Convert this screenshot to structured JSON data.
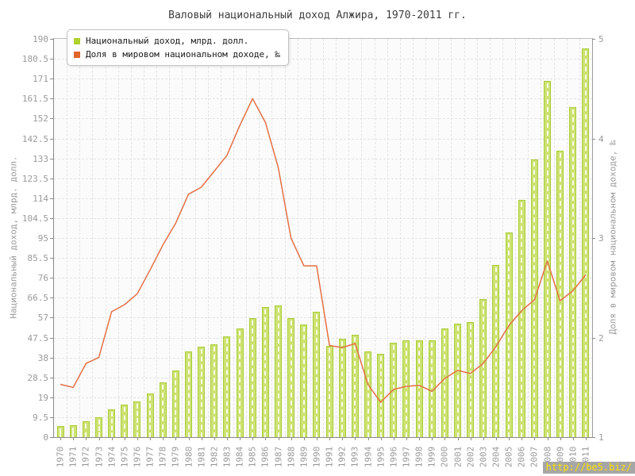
{
  "title": "Валовый национальный доход Алжира, 1970-2011 гг.",
  "watermark": {
    "text": "http://be5.biz/",
    "bg_color": "#a6a6a6",
    "text_color": "#ffe200"
  },
  "legend": {
    "items": [
      {
        "label": "Национальный доход, млрд. долл.",
        "color": "#afd12c"
      },
      {
        "label": "Доля в мировом национальном доходе, ‰",
        "color": "#e0662a"
      }
    ]
  },
  "chart_data": {
    "type": "bar",
    "title": "Валовый национальный доход Алжира, 1970-2011 гг.",
    "categories": [
      "1970",
      "1971",
      "1972",
      "1973",
      "1974",
      "1975",
      "1976",
      "1977",
      "1978",
      "1979",
      "1980",
      "1981",
      "1982",
      "1983",
      "1984",
      "1985",
      "1986",
      "1987",
      "1988",
      "1989",
      "1990",
      "1991",
      "1992",
      "1993",
      "1994",
      "1995",
      "1996",
      "1997",
      "1998",
      "1999",
      "2000",
      "2001",
      "2002",
      "2003",
      "2004",
      "2005",
      "2006",
      "2007",
      "2008",
      "2009",
      "2010",
      "2011"
    ],
    "series": [
      {
        "name": "Национальный доход, млрд. долл.",
        "type": "bar",
        "axis": "left",
        "color": "#cde272",
        "border_color": "#a9cd37",
        "values": [
          5.3,
          5.8,
          7.6,
          9.5,
          13.1,
          15.4,
          17,
          20.8,
          26.2,
          31.7,
          41,
          43.3,
          44.2,
          48.2,
          52,
          56.8,
          62.1,
          62.8,
          56.8,
          53.9,
          59.7,
          43.5,
          47.1,
          48.9,
          40.8,
          39.7,
          45,
          46,
          46,
          46,
          51.7,
          54.2,
          54.9,
          66,
          82,
          97.8,
          113,
          132.5,
          170,
          136.6,
          157.5,
          185.5
        ]
      },
      {
        "name": "Доля в мировом национальном доходе, ‰",
        "type": "line",
        "axis": "right",
        "color": "#e57045",
        "values": [
          1.53,
          1.5,
          1.74,
          1.8,
          2.26,
          2.33,
          2.44,
          2.68,
          2.93,
          3.15,
          3.44,
          3.51,
          3.67,
          3.83,
          4.13,
          4.4,
          4.16,
          3.71,
          3.0,
          2.72,
          2.72,
          1.92,
          1.9,
          1.94,
          1.53,
          1.35,
          1.48,
          1.51,
          1.52,
          1.46,
          1.59,
          1.67,
          1.64,
          1.74,
          1.91,
          2.12,
          2.27,
          2.38,
          2.77,
          2.37,
          2.47,
          2.63
        ]
      }
    ],
    "left_axis": {
      "label": "Национальный доход, млрд. долл.",
      "min": 0,
      "max": 190,
      "tick_step": 9.5
    },
    "right_axis": {
      "label": "Доля в мировом национальном доходе, ‰",
      "min": 1,
      "max": 5,
      "tick_step": 1
    },
    "grid": true,
    "legend_position": "top-left"
  }
}
